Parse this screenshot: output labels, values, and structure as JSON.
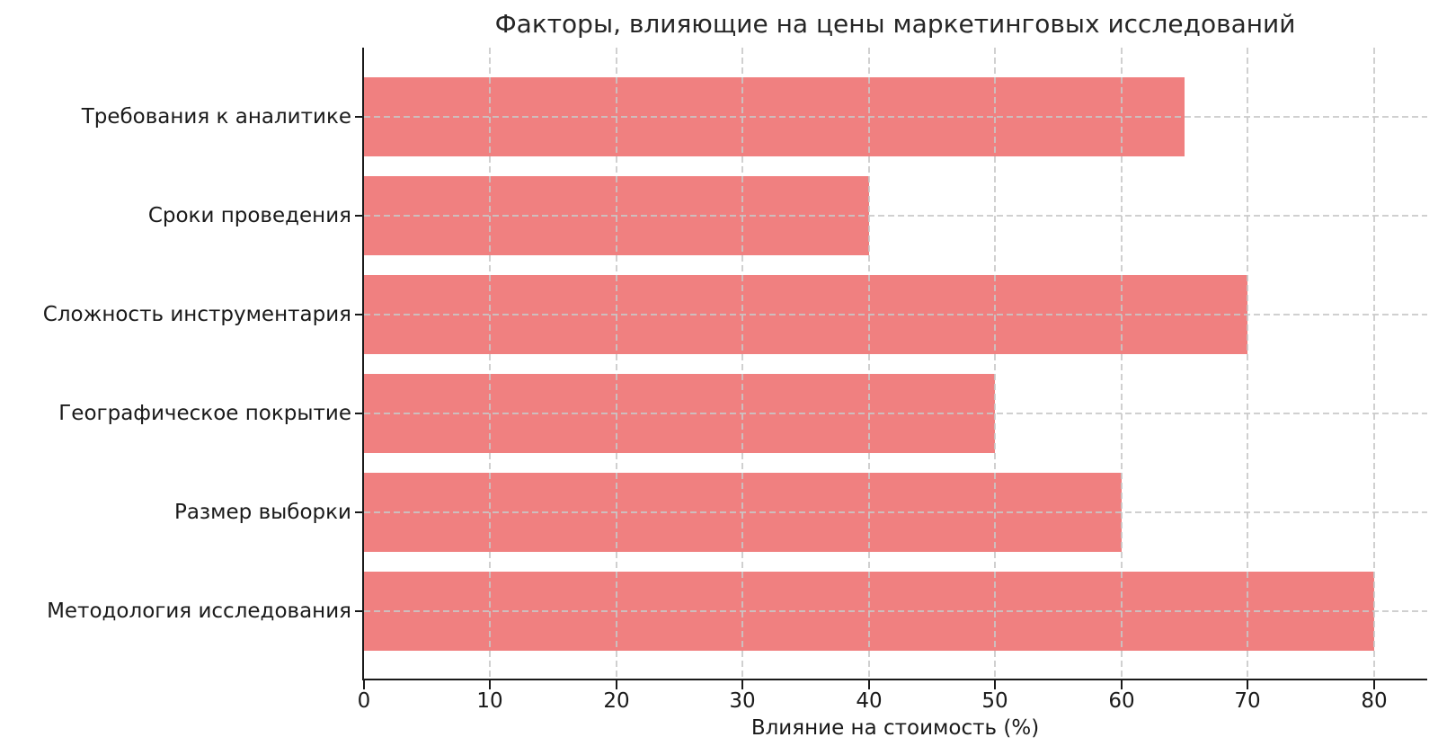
{
  "chart_data": {
    "type": "bar",
    "orientation": "horizontal",
    "title": "Факторы, влияющие на цены маркетинговых исследований",
    "xlabel": "Влияние на стоимость (%)",
    "ylabel": "",
    "categories": [
      "Требования к аналитике",
      "Сроки проведения",
      "Сложность инструментария",
      "Географическое покрытие",
      "Размер выборки",
      "Методология исследования"
    ],
    "values": [
      65,
      40,
      70,
      50,
      60,
      80
    ],
    "xticks": [
      0,
      10,
      20,
      30,
      40,
      50,
      60,
      70,
      80
    ],
    "xlim": [
      0,
      84.2
    ],
    "grid": "dashed gridlines on both axes, drawn over bars",
    "legend": "none",
    "colors": {
      "bar": "#F08080",
      "grid": "#C8C8C8",
      "axis": "#1A1A1A",
      "text": "#1A1A1A",
      "title": "#262626",
      "background": "#FFFFFF"
    }
  }
}
